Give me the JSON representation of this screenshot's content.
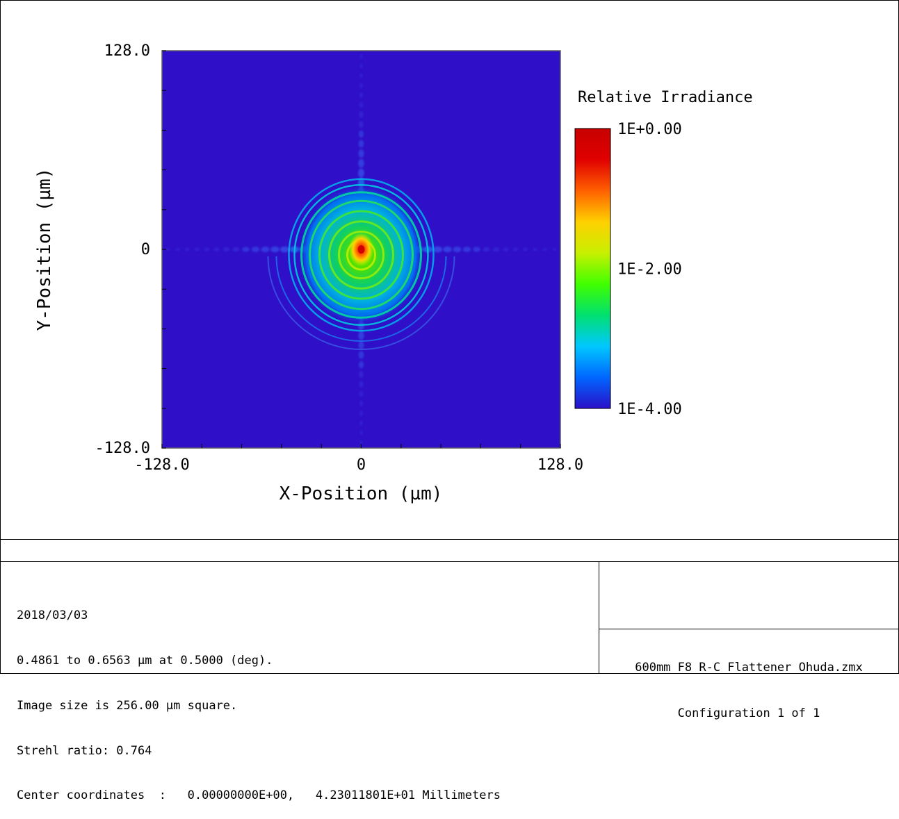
{
  "chart_data": {
    "type": "heatmap",
    "title": "",
    "xlabel": "X-Position (µm)",
    "ylabel": "Y-Position (µm)",
    "xlim": [
      -128.0,
      128.0
    ],
    "ylim": [
      -128.0,
      128.0
    ],
    "x_tick_labels": [
      "-128.0",
      "0",
      "128.0"
    ],
    "y_tick_labels": [
      "128.0",
      "0",
      "-128.0"
    ],
    "colorbar": {
      "title": "Relative Irradiance",
      "scale": "log",
      "labels": [
        "1E+0.00",
        "1E-2.00",
        "1E-4.00"
      ],
      "range": [
        -4,
        0
      ],
      "stops": [
        "#2a10c8",
        "#0066ff",
        "#00c8ff",
        "#00e070",
        "#40ff00",
        "#c8f000",
        "#ffd000",
        "#ff6000",
        "#e00000",
        "#c80000"
      ]
    },
    "background_color": "#2f0fc8",
    "peak": {
      "x": 0,
      "y": 0,
      "log_irradiance": 0
    }
  },
  "info": {
    "date": "2018/03/03",
    "wavelength": "0.4861 to 0.6563 µm at 0.5000 (deg).",
    "image_size": "Image size is 256.00 µm square.",
    "strehl": "Strehl ratio: 0.764",
    "center": "Center coordinates  :   0.00000000E+00,   4.23011801E+01 Millimeters"
  },
  "title_block": {
    "file": "600mm F8 R-C Flattener Ohuda.zmx",
    "config": "Configuration 1 of 1"
  }
}
